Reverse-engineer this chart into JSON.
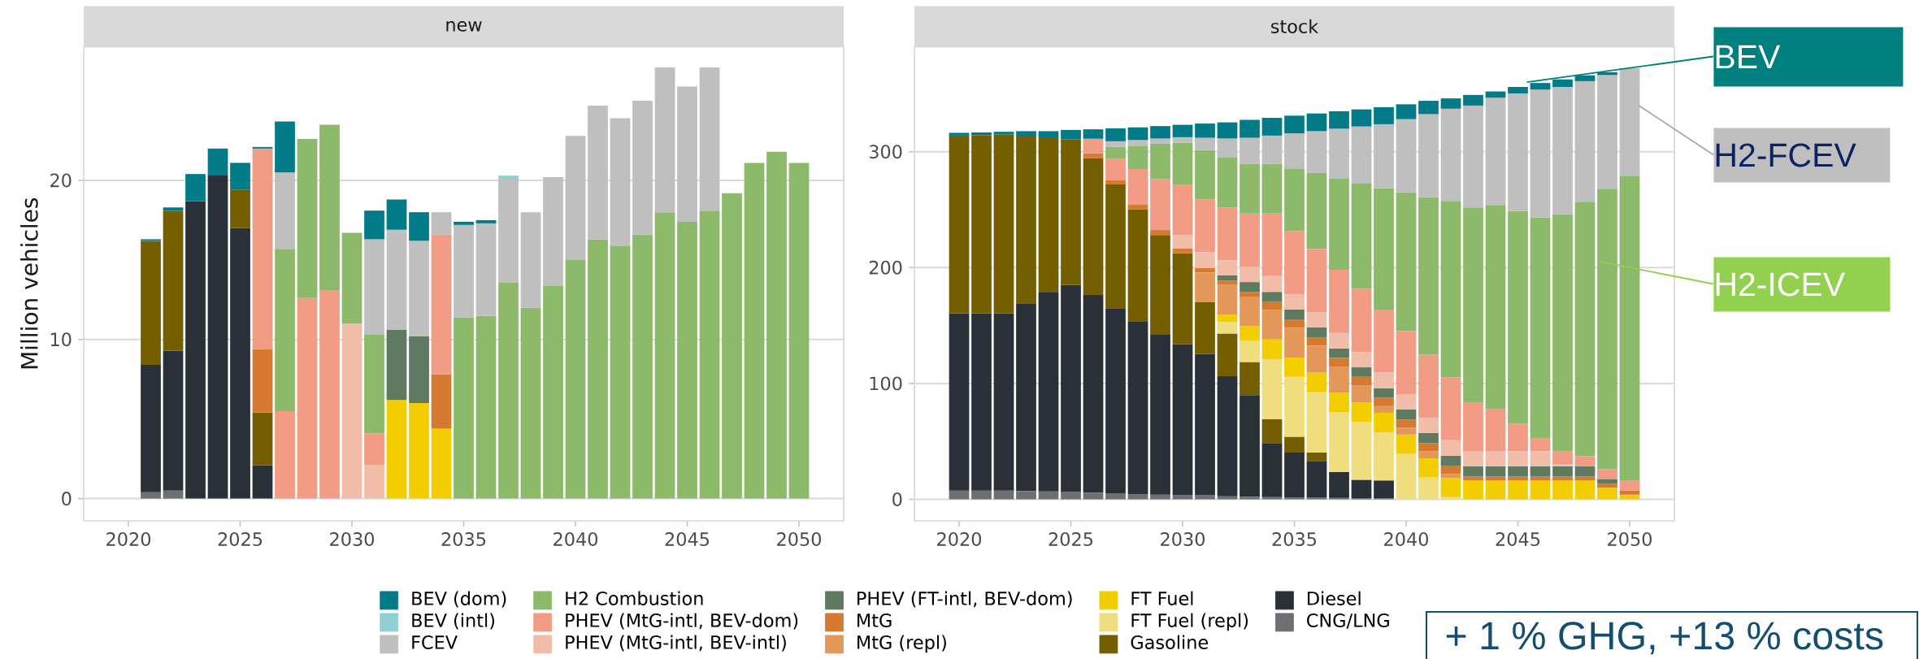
{
  "chart_data": [
    {
      "type": "bar",
      "title": "new",
      "ylabel": "Million vehicles",
      "stacked": true,
      "grid": "y",
      "legend": "bottom",
      "x": [
        2021,
        2022,
        2023,
        2024,
        2025,
        2026,
        2027,
        2028,
        2029,
        2030,
        2031,
        2032,
        2033,
        2034,
        2035,
        2036,
        2037,
        2038,
        2039,
        2040,
        2041,
        2042,
        2043,
        2044,
        2045,
        2046,
        2047,
        2048,
        2049,
        2050
      ],
      "xlim": [
        2018,
        2052
      ],
      "xticks": [
        2020,
        2025,
        2030,
        2035,
        2040,
        2045,
        2050
      ],
      "ylim": [
        -1.4,
        28.4
      ],
      "yticks": [
        0,
        10,
        20
      ],
      "series": [
        {
          "name": "CNG/LNG",
          "color": "#6e6f73",
          "values": [
            0.4,
            0.5,
            0,
            0,
            0,
            0,
            0,
            0,
            0,
            0,
            0,
            0,
            0,
            0,
            0,
            0,
            0,
            0,
            0,
            0,
            0,
            0,
            0,
            0,
            0,
            0,
            0,
            0,
            0,
            0
          ]
        },
        {
          "name": "Diesel",
          "color": "#2a3038",
          "values": [
            8.0,
            8.8,
            18.7,
            20.3,
            17.0,
            2.1,
            0,
            0,
            0,
            0,
            0,
            0,
            0,
            0,
            0,
            0,
            0,
            0,
            0,
            0,
            0,
            0,
            0,
            0,
            0,
            0,
            0,
            0,
            0,
            0
          ]
        },
        {
          "name": "Gasoline",
          "color": "#745f00",
          "values": [
            7.8,
            8.8,
            0,
            0,
            2.4,
            3.3,
            0,
            0,
            0,
            0,
            0,
            0,
            0,
            0,
            0,
            0,
            0,
            0,
            0,
            0,
            0,
            0,
            0,
            0,
            0,
            0,
            0,
            0,
            0,
            0
          ]
        },
        {
          "name": "FT Fuel (repl)",
          "color": "#f0dd7e",
          "values": [
            0,
            0,
            0,
            0,
            0,
            0,
            0,
            0,
            0,
            0,
            0,
            0,
            0,
            0,
            0,
            0,
            0,
            0,
            0,
            0,
            0,
            0,
            0,
            0,
            0,
            0,
            0,
            0,
            0,
            0
          ]
        },
        {
          "name": "FT Fuel",
          "color": "#f2cd00",
          "values": [
            0,
            0,
            0,
            0,
            0,
            0,
            0,
            0,
            0,
            0,
            0,
            6.2,
            6.0,
            4.4,
            0,
            0,
            0,
            0,
            0,
            0,
            0,
            0,
            0,
            0,
            0,
            0,
            0,
            0,
            0,
            0
          ]
        },
        {
          "name": "MtG (repl)",
          "color": "#e3985a",
          "values": [
            0,
            0,
            0,
            0,
            0,
            0,
            0,
            0,
            0,
            0,
            0,
            0,
            0,
            0,
            0,
            0,
            0,
            0,
            0,
            0,
            0,
            0,
            0,
            0,
            0,
            0,
            0,
            0,
            0,
            0
          ]
        },
        {
          "name": "MtG",
          "color": "#d67a31",
          "values": [
            0,
            0,
            0,
            0,
            0,
            4.0,
            0,
            0,
            0,
            0,
            0,
            0,
            0,
            3.4,
            0,
            0,
            0,
            0,
            0,
            0,
            0,
            0,
            0,
            0,
            0,
            0,
            0,
            0,
            0,
            0
          ]
        },
        {
          "name": "PHEV (FT-intl, BEV-dom)",
          "color": "#5e7a60",
          "values": [
            0,
            0,
            0,
            0,
            0,
            0,
            0,
            0,
            0,
            0,
            0,
            4.4,
            4.2,
            0,
            0,
            0,
            0,
            0,
            0,
            0,
            0,
            0,
            0,
            0,
            0,
            0,
            0,
            0,
            0,
            0
          ]
        },
        {
          "name": "PHEV (MtG-intl, BEV-intl)",
          "color": "#f2bda8",
          "values": [
            0,
            0,
            0,
            0,
            0,
            0,
            0,
            0,
            0,
            11.0,
            2.1,
            0,
            0,
            0,
            0,
            0,
            0,
            0,
            0,
            0,
            0,
            0,
            0,
            0,
            0,
            0,
            0,
            0,
            0,
            0
          ]
        },
        {
          "name": "PHEV (MtG-intl, BEV-dom)",
          "color": "#f29b85",
          "values": [
            0,
            0,
            0,
            0,
            0,
            12.6,
            5.5,
            12.6,
            13.1,
            0,
            2.0,
            0,
            0,
            8.8,
            0,
            0,
            0,
            0,
            0,
            0,
            0,
            0,
            0,
            0,
            0,
            0,
            0,
            0,
            0,
            0
          ]
        },
        {
          "name": "H2 Combustion",
          "color": "#8cb96a",
          "values": [
            0,
            0,
            0,
            0,
            0,
            0,
            10.2,
            10.0,
            10.4,
            5.7,
            6.2,
            0,
            0,
            0,
            11.4,
            11.5,
            13.6,
            12.0,
            13.4,
            15.0,
            16.3,
            15.9,
            16.6,
            18.0,
            17.4,
            18.1,
            19.2,
            21.1,
            21.8,
            21.1
          ]
        },
        {
          "name": "FCEV",
          "color": "#bfbfbf",
          "values": [
            0,
            0,
            0,
            0,
            0,
            0,
            4.8,
            0,
            0,
            0,
            6.0,
            6.3,
            6.0,
            1.4,
            5.8,
            5.8,
            6.5,
            6.0,
            6.8,
            7.8,
            8.4,
            8.0,
            8.4,
            9.1,
            8.5,
            9.0,
            0,
            0,
            0,
            0
          ]
        },
        {
          "name": "BEV (intl)",
          "color": "#8dd1d3",
          "values": [
            0,
            0,
            0,
            0,
            0,
            0,
            0,
            0,
            0,
            0,
            0,
            0,
            0,
            0,
            0,
            0,
            0.2,
            0,
            0,
            0,
            0,
            0,
            0,
            0,
            0,
            0,
            0,
            0,
            0,
            0
          ]
        },
        {
          "name": "BEV (dom)",
          "color": "#017b87",
          "values": [
            0.1,
            0.2,
            1.7,
            1.7,
            1.7,
            0.1,
            3.2,
            0,
            0,
            0,
            1.8,
            1.9,
            1.8,
            0,
            0.2,
            0.2,
            0,
            0,
            0,
            0,
            0,
            0,
            0,
            0,
            0,
            0,
            0,
            0,
            0,
            0
          ]
        }
      ]
    },
    {
      "type": "bar",
      "title": "stock",
      "stacked": true,
      "grid": "y",
      "x": [
        2020,
        2021,
        2022,
        2023,
        2024,
        2025,
        2026,
        2027,
        2028,
        2029,
        2030,
        2031,
        2032,
        2033,
        2034,
        2035,
        2036,
        2037,
        2038,
        2039,
        2040,
        2041,
        2042,
        2043,
        2044,
        2045,
        2046,
        2047,
        2048,
        2049,
        2050
      ],
      "xlim": [
        2018,
        2052
      ],
      "xticks": [
        2020,
        2025,
        2030,
        2035,
        2040,
        2045,
        2050
      ],
      "ylim": [
        -18.6,
        390.6
      ],
      "yticks": [
        0,
        100,
        200,
        300
      ],
      "series": [
        {
          "color": "#6e6f73",
          "values": [
            7.6,
            7.6,
            7.6,
            7.1,
            6.8,
            6.3,
            5.7,
            4.9,
            4.4,
            4.1,
            3.5,
            3.5,
            2.7,
            2.2,
            1.9,
            1.6,
            1.4,
            1.2,
            1.0,
            0.8,
            0,
            0,
            0,
            0,
            0,
            0,
            0,
            0,
            0,
            0,
            0
          ]
        },
        {
          "color": "#2a3038",
          "values": [
            152.9,
            152.9,
            152.9,
            162.1,
            171.7,
            178.7,
            170.6,
            160.0,
            149.3,
            137.9,
            130.3,
            121.8,
            103.6,
            87.7,
            46.6,
            38.7,
            31.8,
            22.5,
            15.9,
            15.5,
            0,
            0,
            0,
            0,
            0,
            0,
            0,
            0,
            0,
            0,
            0
          ]
        },
        {
          "color": "#745f00",
          "values": [
            153.4,
            153.9,
            154.2,
            143.9,
            133.2,
            125.6,
            118.0,
            106.8,
            96.4,
            86.1,
            78.7,
            44.7,
            36.8,
            28.6,
            20.7,
            13.7,
            7.1,
            0,
            0,
            0,
            0,
            0,
            0,
            0,
            0,
            0,
            0,
            0,
            0,
            0,
            0
          ]
        },
        {
          "color": "#f0dd7e",
          "values": [
            0,
            0,
            0,
            0,
            0,
            0,
            0,
            0,
            0,
            0,
            0,
            0,
            10.0,
            18.6,
            51.8,
            51.7,
            52.1,
            51.5,
            50.1,
            41.5,
            39.2,
            18.8,
            1.9,
            0,
            0,
            0,
            0,
            0,
            0,
            0,
            0
          ]
        },
        {
          "color": "#f2cd00",
          "values": [
            0,
            0,
            0,
            0,
            0,
            0,
            0,
            0,
            0,
            0,
            0,
            0,
            6.3,
            12.2,
            16.9,
            16.6,
            16.9,
            16.9,
            16.7,
            16.9,
            16.7,
            16.6,
            16.4,
            16.3,
            16.3,
            16.3,
            16.3,
            16.3,
            16.3,
            10.0,
            4.0
          ]
        },
        {
          "color": "#e3985a",
          "values": [
            0,
            0,
            0,
            0,
            0,
            0,
            0,
            0,
            0,
            0,
            0,
            25.9,
            25.6,
            25.6,
            25.6,
            25.7,
            23.4,
            22.1,
            14.4,
            5.7,
            6.0,
            6.0,
            3.5,
            0,
            0,
            0,
            0,
            0,
            0,
            0,
            0
          ]
        },
        {
          "color": "#d67a31",
          "values": [
            0,
            0,
            0,
            0,
            0,
            0,
            4.3,
            4.0,
            4.1,
            4.3,
            4.1,
            3.8,
            3.8,
            4.1,
            7.3,
            7.3,
            7.1,
            7.9,
            7.6,
            7.3,
            7.0,
            7.1,
            6.8,
            3.3,
            3.3,
            3.3,
            3.3,
            3.3,
            3.3,
            3.5,
            3.5
          ]
        },
        {
          "color": "#5e7a60",
          "values": [
            0,
            0,
            0,
            0,
            0,
            0,
            0,
            0,
            0,
            0,
            0,
            0,
            4.4,
            8.5,
            8.2,
            8.5,
            8.7,
            8.1,
            8.2,
            8.2,
            8.8,
            8.7,
            9.0,
            9.0,
            9.0,
            9.0,
            9.0,
            9.0,
            9.0,
            4.1,
            0
          ]
        },
        {
          "color": "#f2bda8",
          "values": [
            0,
            0,
            0,
            0,
            0,
            0,
            0,
            0,
            0,
            0,
            11.5,
            13.4,
            13.1,
            13.3,
            13.6,
            13.3,
            13.1,
            13.4,
            13.3,
            13.4,
            13.0,
            13.1,
            13.4,
            12.8,
            12.8,
            12.8,
            12.8,
            1.4,
            0,
            0,
            0
          ]
        },
        {
          "color": "#f29b85",
          "values": [
            0,
            0,
            0,
            0,
            0,
            0,
            12.6,
            18.0,
            30.8,
            43.9,
            43.6,
            45.8,
            45.7,
            45.8,
            54.0,
            54.5,
            54.5,
            54.5,
            54.5,
            54.5,
            54.5,
            54.5,
            54.4,
            42.3,
            36.8,
            24.0,
            11.0,
            11.1,
            8.7,
            8.5,
            8.5
          ]
        },
        {
          "color": "#8cb96a",
          "values": [
            0,
            0,
            0,
            0,
            0,
            0,
            0,
            10.4,
            20.2,
            30.5,
            36.2,
            42.5,
            42.8,
            42.8,
            42.8,
            54.0,
            65.4,
            79.0,
            91.3,
            104.6,
            119.7,
            136.0,
            152.1,
            168.3,
            175.8,
            183.3,
            191.0,
            204.9,
            219.6,
            242.0,
            263.2
          ]
        },
        {
          "color": "#bfbfbf",
          "values": [
            0,
            0,
            0,
            0,
            0,
            0,
            0,
            4.9,
            4.9,
            4.6,
            4.6,
            10.6,
            16.6,
            22.6,
            24.5,
            30.2,
            36.2,
            42.8,
            48.8,
            55.3,
            63.2,
            71.6,
            79.6,
            87.8,
            92.6,
            101.6,
            110.2,
            109.9,
            104.0,
            98.1,
            92.8
          ]
        },
        {
          "color": "#017b87",
          "values": [
            2.4,
            2.2,
            2.5,
            4.6,
            6.0,
            8.2,
            8.1,
            11.2,
            10.9,
            10.7,
            10.7,
            12.3,
            13.9,
            15.5,
            15.3,
            15.3,
            15.3,
            15.0,
            14.7,
            14.7,
            12.8,
            11.5,
            8.9,
            9.2,
            5.4,
            5.6,
            5.7,
            6.5,
            5.0,
            2.4,
            0
          ]
        }
      ],
      "annotations": [
        {
          "text": "BEV",
          "x": 2045.4,
          "y": 360
        },
        {
          "text": "H2-FCEV",
          "x": 2050.4,
          "y": 340
        },
        {
          "text": "H2-ICEV",
          "x": 2048.7,
          "y": 205
        },
        "+ 1 % GHG, +13 % costs"
      ]
    }
  ]
}
